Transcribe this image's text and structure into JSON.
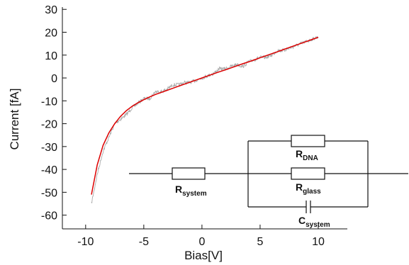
{
  "chart_data": {
    "type": "line",
    "xlabel": "Bias[V]",
    "ylabel": "Current [fA]",
    "xlim": [
      -12,
      12.5
    ],
    "ylim": [
      -66,
      31
    ],
    "x_ticks": [
      -10,
      -5,
      0,
      5,
      10
    ],
    "y_ticks": [
      30,
      20,
      10,
      0,
      -10,
      -20,
      -30,
      -40,
      -50,
      -60
    ],
    "grid": false,
    "series": [
      {
        "style": "noisy measured data",
        "color": "#aaaaaa",
        "x": [
          -9.5,
          -9.0,
          -8.5,
          -8.0,
          -7.5,
          -7.0,
          -6.5,
          -6.0,
          -5.5,
          -5.0,
          -4.5,
          -4.0,
          -3.5,
          -3.0,
          -2.5,
          -2.0,
          -1.5,
          -1.0,
          -0.5,
          0.0,
          0.5,
          1.0,
          1.5,
          2.0,
          2.5,
          3.0,
          3.5,
          4.0,
          4.5,
          5.0,
          5.5,
          6.0,
          6.5,
          7.0,
          7.5,
          8.0,
          8.5,
          9.0,
          9.5,
          10.0
        ],
        "y": [
          -55,
          -42,
          -32,
          -26,
          -20,
          -18,
          -16,
          -13,
          -11,
          -9,
          -9,
          -6,
          -6,
          -5,
          -3,
          -3,
          -2,
          -2,
          -1,
          0,
          1,
          2,
          4,
          4,
          5,
          6,
          5,
          7,
          8,
          9,
          9,
          10,
          12,
          12,
          13,
          14,
          15,
          16,
          17,
          18
        ]
      },
      {
        "style": "fit curve",
        "color": "#dd0000",
        "x": [
          -9.5,
          -9.0,
          -8.5,
          -8.0,
          -7.5,
          -7.0,
          -6.5,
          -6.0,
          -5.5,
          -5.0,
          -4.5,
          -4.0,
          -3.5,
          -3.0,
          -2.5,
          -2.0,
          -1.5,
          -1.0,
          -0.5,
          0.0,
          0.5,
          1.0,
          1.5,
          2.0,
          2.5,
          3.0,
          3.5,
          4.0,
          4.5,
          5.0,
          5.5,
          6.0,
          6.5,
          7.0,
          7.5,
          8.0,
          8.5,
          9.0,
          9.5,
          10.0
        ],
        "y": [
          -51,
          -38,
          -29.5,
          -24,
          -20,
          -16.8,
          -14.3,
          -12.4,
          -10.8,
          -9.5,
          -8.3,
          -7.2,
          -6.3,
          -5.4,
          -4.5,
          -3.6,
          -2.7,
          -1.8,
          -0.9,
          0,
          0.9,
          1.8,
          2.7,
          3.5,
          4.4,
          5.3,
          6.2,
          7.0,
          7.9,
          8.8,
          9.7,
          10.6,
          11.5,
          12.4,
          13.3,
          14.2,
          15.1,
          16.0,
          16.9,
          17.8
        ]
      }
    ]
  },
  "circuit": {
    "r_dna": {
      "main": "R",
      "sub": "DNA"
    },
    "r_glass": {
      "main": "R",
      "sub": "glass"
    },
    "r_system": {
      "main": "R",
      "sub": "system"
    },
    "c_system": {
      "main": "C",
      "sub": "system"
    }
  },
  "colors": {
    "data": "#aaaaaa",
    "fit": "#dd0000",
    "axis": "#111111"
  }
}
